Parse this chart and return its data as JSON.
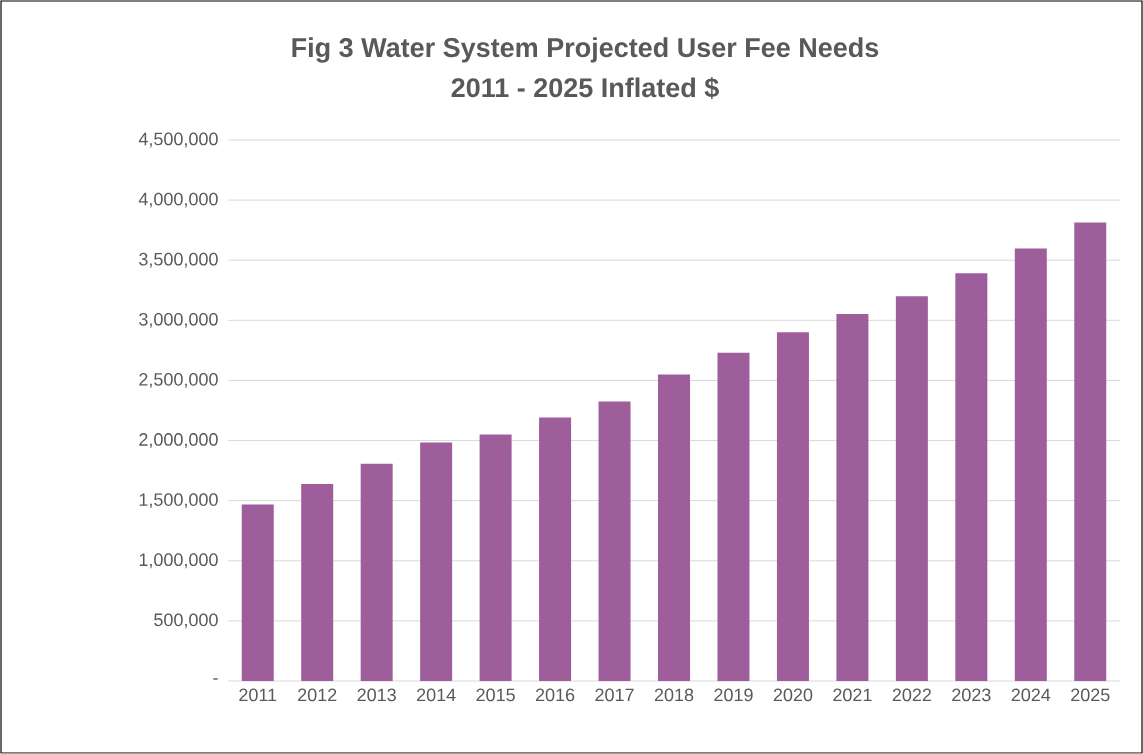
{
  "chart_data": {
    "type": "bar",
    "title": "Fig 3  Water System Projected User Fee Needs",
    "subtitle": "2011 - 2025 Inflated $",
    "categories": [
      "2011",
      "2012",
      "2013",
      "2014",
      "2015",
      "2016",
      "2017",
      "2018",
      "2019",
      "2020",
      "2021",
      "2022",
      "2023",
      "2024",
      "2025"
    ],
    "values": [
      1467000,
      1639000,
      1806000,
      1983000,
      2050000,
      2192000,
      2325000,
      2550000,
      2731000,
      2900000,
      3053000,
      3200000,
      3392000,
      3597000,
      3814000
    ],
    "color": "#9e5e9b",
    "ylim": [
      0,
      4500000
    ],
    "yticks": [
      {
        "value": 0,
        "label": "-"
      },
      {
        "value": 500000,
        "label": "500,000"
      },
      {
        "value": 1000000,
        "label": "1,000,000"
      },
      {
        "value": 1500000,
        "label": "1,500,000"
      },
      {
        "value": 2000000,
        "label": "2,000,000"
      },
      {
        "value": 2500000,
        "label": "2,500,000"
      },
      {
        "value": 3000000,
        "label": "3,000,000"
      },
      {
        "value": 3500000,
        "label": "3,500,000"
      },
      {
        "value": 4000000,
        "label": "4,000,000"
      },
      {
        "value": 4500000,
        "label": "4,500,000"
      }
    ],
    "grid": true
  }
}
